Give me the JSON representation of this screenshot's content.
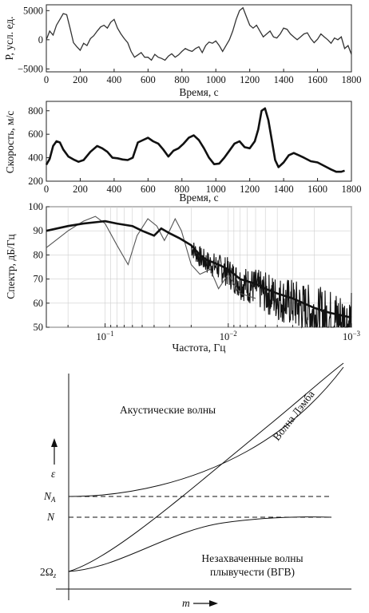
{
  "charts": [
    {
      "id": "pressure",
      "type": "line",
      "ylabel": "P, усл. ед.",
      "xlabel": "Время, с",
      "xlim": [
        0,
        1800
      ],
      "ylim": [
        -5500,
        6000
      ],
      "xticks": [
        0,
        200,
        400,
        600,
        800,
        1000,
        1200,
        1400,
        1600,
        1800
      ],
      "yticks": [
        -5000,
        0,
        5000
      ],
      "series": [
        {
          "x": [
            0,
            20,
            40,
            60,
            80,
            100,
            120,
            140,
            160,
            180,
            200,
            220,
            240,
            260,
            280,
            300,
            320,
            340,
            360,
            380,
            400,
            420,
            440,
            460,
            480,
            500,
            520,
            540,
            560,
            580,
            600,
            620,
            640,
            660,
            680,
            700,
            720,
            740,
            760,
            780,
            800,
            820,
            840,
            860,
            880,
            900,
            920,
            940,
            960,
            980,
            1000,
            1020,
            1040,
            1060,
            1080,
            1100,
            1120,
            1140,
            1160,
            1180,
            1200,
            1220,
            1240,
            1260,
            1280,
            1300,
            1320,
            1340,
            1360,
            1380,
            1400,
            1420,
            1440,
            1460,
            1480,
            1500,
            1520,
            1540,
            1560,
            1580,
            1600,
            1620,
            1640,
            1660,
            1680,
            1700,
            1720,
            1740,
            1760,
            1780,
            1800
          ],
          "y": [
            0,
            1500,
            800,
            2500,
            3500,
            4500,
            4300,
            2000,
            -500,
            -1200,
            -1800,
            -600,
            -1000,
            200,
            700,
            1500,
            2200,
            2500,
            2000,
            3000,
            3500,
            2000,
            1000,
            200,
            -500,
            -2000,
            -3000,
            -2600,
            -2200,
            -3000,
            -3000,
            -3500,
            -2500,
            -3000,
            -3200,
            -3500,
            -2800,
            -2400,
            -3000,
            -2600,
            -2000,
            -1500,
            -1800,
            -2000,
            -1500,
            -1200,
            -2200,
            -1000,
            -400,
            -600,
            -200,
            -1000,
            -2000,
            -1000,
            0,
            1500,
            3500,
            5000,
            5500,
            4000,
            2500,
            2000,
            2500,
            1500,
            500,
            1000,
            1500,
            500,
            300,
            1000,
            2000,
            1800,
            1000,
            500,
            0,
            500,
            1000,
            1200,
            200,
            -500,
            100,
            1000,
            500,
            0,
            -600,
            300,
            0,
            500,
            -1500,
            -1000,
            -2500
          ]
        }
      ]
    },
    {
      "id": "speed",
      "type": "line",
      "ylabel": "Скорость, м/с",
      "xlabel": "Время, с",
      "xlim": [
        0,
        1800
      ],
      "ylim": [
        200,
        880
      ],
      "xticks": [
        0,
        200,
        400,
        600,
        800,
        1000,
        1200,
        1400,
        1600,
        1800
      ],
      "yticks": [
        200,
        400,
        600,
        800
      ],
      "series": [
        {
          "x": [
            0,
            20,
            40,
            60,
            80,
            100,
            130,
            160,
            190,
            220,
            260,
            300,
            330,
            360,
            390,
            420,
            450,
            480,
            510,
            540,
            570,
            600,
            630,
            660,
            690,
            720,
            750,
            780,
            810,
            840,
            870,
            900,
            930,
            960,
            990,
            1020,
            1050,
            1080,
            1110,
            1140,
            1170,
            1200,
            1230,
            1250,
            1270,
            1290,
            1310,
            1330,
            1350,
            1370,
            1400,
            1430,
            1460,
            1490,
            1520,
            1560,
            1600,
            1640,
            1680,
            1710,
            1740,
            1760
          ],
          "y": [
            340,
            390,
            500,
            540,
            530,
            470,
            410,
            385,
            365,
            380,
            450,
            500,
            480,
            450,
            400,
            395,
            385,
            380,
            400,
            530,
            550,
            570,
            540,
            520,
            470,
            410,
            460,
            480,
            520,
            570,
            590,
            550,
            480,
            400,
            345,
            350,
            400,
            460,
            520,
            540,
            490,
            480,
            540,
            640,
            800,
            820,
            720,
            550,
            380,
            320,
            360,
            420,
            440,
            420,
            400,
            370,
            360,
            330,
            300,
            280,
            280,
            290
          ]
        }
      ]
    },
    {
      "id": "spectrum",
      "type": "line",
      "ylabel": "Спектр, дБ/Гц",
      "xlabel": "Частота, Гц",
      "xscale": "log-reversed",
      "xlim": [
        0.3,
        0.001
      ],
      "ylim": [
        50,
        100
      ],
      "xtick_labels": [
        "10^-1",
        "10^-2",
        "10^-3"
      ],
      "yticks": [
        50,
        60,
        70,
        80,
        90,
        100
      ],
      "series": [
        {
          "style": "thick",
          "x": [
            0.3,
            0.2,
            0.15,
            0.1,
            0.08,
            0.06,
            0.05,
            0.04,
            0.035,
            0.03,
            0.025,
            0.02,
            0.017,
            0.015,
            0.012,
            0.01,
            0.008,
            0.006,
            0.005,
            0.004,
            0.003,
            0.002,
            0.0015,
            0.001
          ],
          "y": [
            90,
            92,
            93,
            94,
            93,
            92,
            90,
            88,
            91,
            89,
            87,
            84,
            80,
            78,
            76,
            74,
            70,
            68,
            66,
            64,
            62,
            58,
            56,
            54
          ]
        },
        {
          "style": "thin",
          "x": [
            0.3,
            0.2,
            0.15,
            0.12,
            0.1,
            0.08,
            0.065,
            0.055,
            0.045,
            0.038,
            0.033,
            0.03,
            0.027,
            0.024,
            0.02,
            0.017,
            0.014,
            0.012,
            0.01,
            0.008,
            0.006
          ],
          "y": [
            83,
            90,
            94,
            96,
            93,
            84,
            76,
            88,
            95,
            92,
            86,
            90,
            95,
            90,
            76,
            72,
            74,
            66,
            72,
            64,
            62
          ]
        }
      ]
    }
  ],
  "diagram": {
    "label_acoustic": "Акустические волны",
    "label_lamb": "Волна Лэмба",
    "label_igw_line1": "Незахваченные волны",
    "label_igw_line2": "плывучести (ВГВ)",
    "axis_eps": "ε",
    "axis_m": "m",
    "level_na": "N",
    "level_na_sub": "A",
    "level_n": "N",
    "level_omega": "2Ω",
    "level_omega_sub": "z"
  }
}
